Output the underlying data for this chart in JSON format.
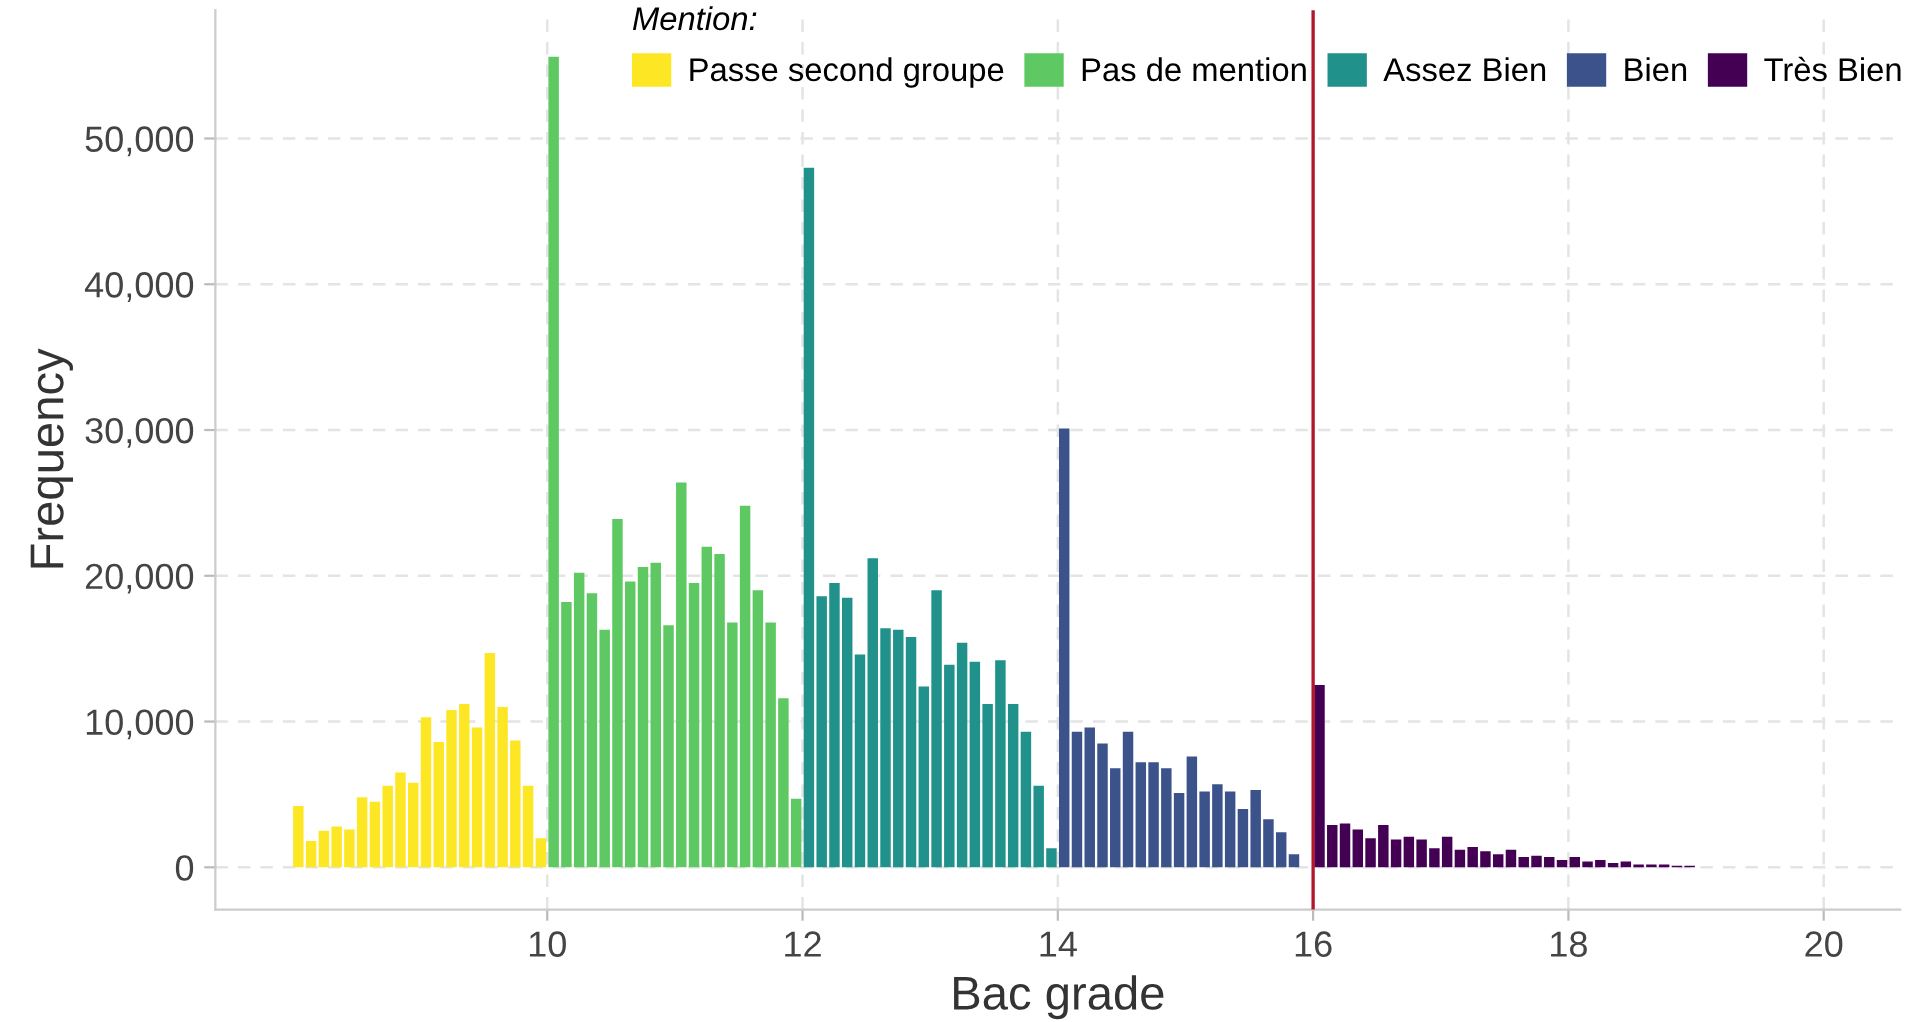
{
  "chart_data": {
    "type": "bar",
    "xlabel": "Bac grade",
    "ylabel": "Frequency",
    "legend_title": "Mention:",
    "legend": "top",
    "series": [
      {
        "name": "Passe second groupe",
        "color": "#fde725",
        "x": [
          8.05,
          8.15,
          8.25,
          8.35,
          8.45,
          8.55,
          8.65,
          8.75,
          8.85,
          8.95,
          9.05,
          9.15,
          9.25,
          9.35,
          9.45,
          9.55,
          9.65,
          9.75,
          9.85,
          9.95
        ],
        "values": [
          4200,
          1800,
          2500,
          2800,
          2600,
          4800,
          4500,
          5600,
          6500,
          5800,
          10300,
          8600,
          10800,
          11200,
          9600,
          14700,
          11000,
          8700,
          5600,
          2000
        ]
      },
      {
        "name": "Pas de mention",
        "color": "#5ec962",
        "x": [
          10.05,
          10.15,
          10.25,
          10.35,
          10.45,
          10.55,
          10.65,
          10.75,
          10.85,
          10.95,
          11.05,
          11.15,
          11.25,
          11.35,
          11.45,
          11.55,
          11.65,
          11.75,
          11.85,
          11.95
        ],
        "values": [
          55600,
          18200,
          20200,
          18800,
          16300,
          23900,
          19600,
          20600,
          20900,
          16600,
          26400,
          19500,
          22000,
          21500,
          16800,
          24800,
          19000,
          16800,
          11600,
          4700
        ]
      },
      {
        "name": "Assez Bien",
        "color": "#21918c",
        "x": [
          12.05,
          12.15,
          12.25,
          12.35,
          12.45,
          12.55,
          12.65,
          12.75,
          12.85,
          12.95,
          13.05,
          13.15,
          13.25,
          13.35,
          13.45,
          13.55,
          13.65,
          13.75,
          13.85,
          13.95
        ],
        "values": [
          48000,
          18600,
          19500,
          18500,
          14600,
          21200,
          16400,
          16300,
          15800,
          12400,
          19000,
          13900,
          15400,
          14100,
          11200,
          14200,
          11200,
          9300,
          5600,
          1300
        ]
      },
      {
        "name": "Bien",
        "color": "#3b528b",
        "x": [
          14.05,
          14.15,
          14.25,
          14.35,
          14.45,
          14.55,
          14.65,
          14.75,
          14.85,
          14.95,
          15.05,
          15.15,
          15.25,
          15.35,
          15.45,
          15.55,
          15.65,
          15.75,
          15.85
        ],
        "values": [
          30100,
          9300,
          9600,
          8500,
          6800,
          9300,
          7200,
          7200,
          6800,
          5100,
          7600,
          5200,
          5700,
          5200,
          4000,
          5300,
          3300,
          2400,
          900
        ]
      },
      {
        "name": "Très Bien",
        "color": "#440154",
        "x": [
          16.05,
          16.15,
          16.25,
          16.35,
          16.45,
          16.55,
          16.65,
          16.75,
          16.85,
          16.95,
          17.05,
          17.15,
          17.25,
          17.35,
          17.45,
          17.55,
          17.65,
          17.75,
          17.85,
          17.95,
          18.05,
          18.15,
          18.25,
          18.35,
          18.45,
          18.55,
          18.65,
          18.75,
          18.85,
          18.95
        ],
        "values": [
          12500,
          2900,
          3000,
          2600,
          2000,
          2900,
          1900,
          2100,
          1900,
          1300,
          2100,
          1200,
          1400,
          1100,
          900,
          1200,
          700,
          800,
          700,
          500,
          700,
          400,
          500,
          300,
          400,
          200,
          200,
          200,
          100,
          100
        ]
      }
    ],
    "ref_lines": [
      {
        "axis": "x",
        "value": 16,
        "color": "#b2182b",
        "line_style": "solid"
      }
    ],
    "xlim": [
      7.4,
      20.6
    ],
    "xticks": [
      10,
      12,
      14,
      16,
      18,
      20
    ],
    "ylim": [
      -2900,
      58800
    ],
    "yticks": [
      {
        "value": 0,
        "label": "0"
      },
      {
        "value": 10000,
        "label": "10,000"
      },
      {
        "value": 20000,
        "label": "20,000"
      },
      {
        "value": 30000,
        "label": "30,000"
      },
      {
        "value": 40000,
        "label": "40,000"
      },
      {
        "value": 50000,
        "label": "50,000"
      }
    ],
    "grid": true
  }
}
